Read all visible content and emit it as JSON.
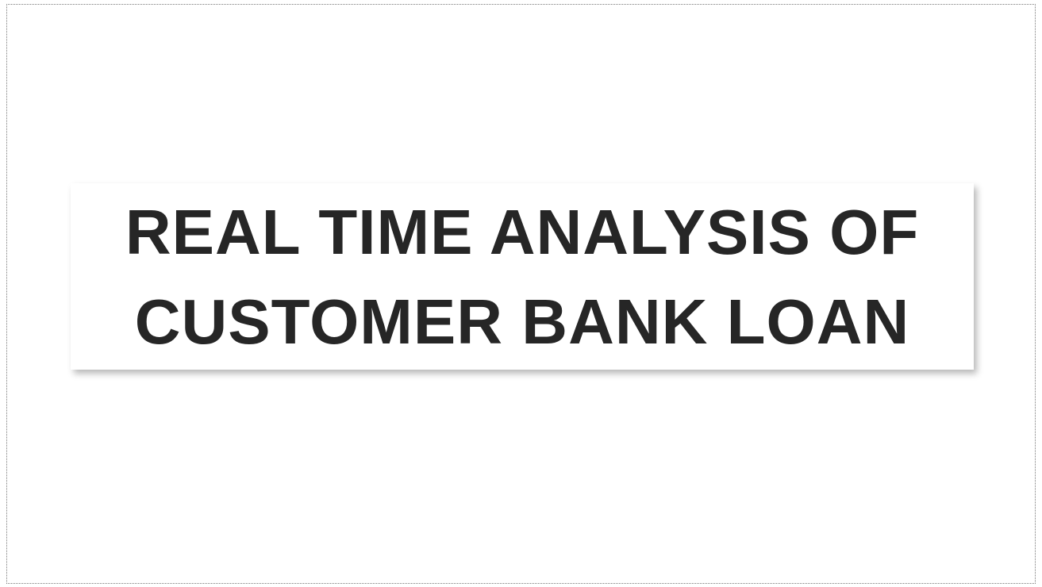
{
  "slide": {
    "title_lines": [
      "REAL TIME ANALYSIS OF",
      "CUSTOMER BANK LOAN"
    ]
  },
  "colors": {
    "background": "#ffffff",
    "title_text": "#262626",
    "slide_border": "#7a7a7a"
  }
}
